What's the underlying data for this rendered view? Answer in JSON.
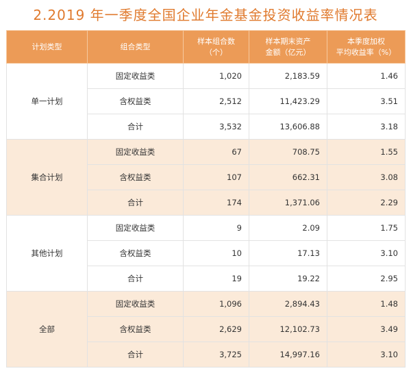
{
  "title": "2.2019 年一季度全国企业年金基金投资收益率情况表",
  "headers": {
    "plan_type": "计划类型",
    "combo_type": "组合类型",
    "sample_count_l1": "样本组合数",
    "sample_count_l2": "（个）",
    "assets_l1": "样本期末资产",
    "assets_l2": "金额（亿元）",
    "return_l1": "本季度加权",
    "return_l2": "平均收益率（%）"
  },
  "groups": [
    {
      "name": "单一计划",
      "rows": [
        {
          "type": "固定收益类",
          "count": "1,020",
          "assets": "2,183.59",
          "rate": "1.46"
        },
        {
          "type": "含权益类",
          "count": "2,512",
          "assets": "11,423.29",
          "rate": "3.51"
        },
        {
          "type": "合计",
          "count": "3,532",
          "assets": "13,606.88",
          "rate": "3.18"
        }
      ]
    },
    {
      "name": "集合计划",
      "rows": [
        {
          "type": "固定收益类",
          "count": "67",
          "assets": "708.75",
          "rate": "1.55"
        },
        {
          "type": "含权益类",
          "count": "107",
          "assets": "662.31",
          "rate": "3.08"
        },
        {
          "type": "合计",
          "count": "174",
          "assets": "1,371.06",
          "rate": "2.29"
        }
      ]
    },
    {
      "name": "其他计划",
      "rows": [
        {
          "type": "固定收益类",
          "count": "9",
          "assets": "2.09",
          "rate": "1.75"
        },
        {
          "type": "含权益类",
          "count": "10",
          "assets": "17.13",
          "rate": "3.10"
        },
        {
          "type": "合计",
          "count": "19",
          "assets": "19.22",
          "rate": "2.95"
        }
      ]
    },
    {
      "name": "全部",
      "rows": [
        {
          "type": "固定收益类",
          "count": "1,096",
          "assets": "2,894.43",
          "rate": "1.48"
        },
        {
          "type": "含权益类",
          "count": "2,629",
          "assets": "12,102.73",
          "rate": "3.49"
        },
        {
          "type": "合计",
          "count": "3,725",
          "assets": "14,997.16",
          "rate": "3.10"
        }
      ]
    }
  ],
  "colors": {
    "title": "#e07a2e",
    "header_bg": "#ec9b57",
    "shade_bg": "#fbead9"
  }
}
